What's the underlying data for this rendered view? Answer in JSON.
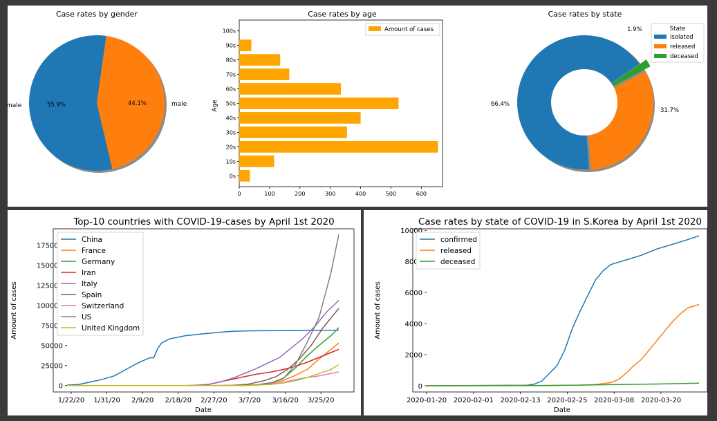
{
  "chart_data": [
    {
      "type": "pie",
      "title": "Case rates by gender",
      "labels": [
        "male",
        "male"
      ],
      "values": [
        55.9,
        44.1
      ],
      "pct_labels": [
        "55.9%",
        "44.1%"
      ],
      "colors": [
        "#1f77b4",
        "#ff7f0e"
      ]
    },
    {
      "type": "bar",
      "orientation": "horizontal",
      "title": "Case rates by age",
      "ylabel": "Age",
      "categories": [
        "0s",
        "10s",
        "20s",
        "30s",
        "40s",
        "50s",
        "60s",
        "70s",
        "80s",
        "90s",
        "100s"
      ],
      "values": [
        35,
        115,
        655,
        355,
        400,
        525,
        335,
        165,
        135,
        40,
        0
      ],
      "legend": [
        "Amount of cases"
      ],
      "xticks": [
        "0",
        "100",
        "200",
        "300",
        "400",
        "500",
        "600"
      ],
      "xlim": [
        0,
        655
      ],
      "color": "#ffa500"
    },
    {
      "type": "pie",
      "subtype": "donut",
      "title": "Case rates by state",
      "legend_title": "State",
      "labels": [
        "isolated",
        "released",
        "deceased"
      ],
      "values": [
        66.4,
        31.7,
        1.9
      ],
      "pct_labels": [
        "66.4%",
        "31.7%",
        "1.9%"
      ],
      "colors": [
        "#1f77b4",
        "#ff7f0e",
        "#2ca02c"
      ]
    },
    {
      "type": "line",
      "title": "Top-10  countries with COVID-19-cases by April 1st 2020",
      "xlabel": "Date",
      "ylabel": "Amount of cases",
      "xticks": [
        "1/22/20",
        "1/31/20",
        "2/9/20",
        "2/18/20",
        "2/27/20",
        "3/7/20",
        "3/16/20",
        "3/25/20"
      ],
      "yticks": [
        "0",
        "25000",
        "50000",
        "75000",
        "100000",
        "125000",
        "150000",
        "175000"
      ],
      "ylim": [
        -8000,
        195000
      ],
      "days": 70,
      "series": [
        {
          "name": "China",
          "color": "#1f77b4",
          "points": [
            [
              0,
              548
            ],
            [
              3,
              1400
            ],
            [
              6,
              4500
            ],
            [
              9,
              7700
            ],
            [
              12,
              12000
            ],
            [
              15,
              20000
            ],
            [
              18,
              28000
            ],
            [
              21,
              34500
            ],
            [
              22,
              34500
            ],
            [
              23,
              46000
            ],
            [
              24,
              53000
            ],
            [
              26,
              58000
            ],
            [
              30,
              62000
            ],
            [
              34,
              64000
            ],
            [
              38,
              66000
            ],
            [
              42,
              67500
            ],
            [
              46,
              68000
            ],
            [
              50,
              68200
            ],
            [
              55,
              68300
            ],
            [
              60,
              68500
            ],
            [
              65,
              68700
            ],
            [
              69,
              68800
            ]
          ]
        },
        {
          "name": "France",
          "color": "#ff7f0e",
          "points": [
            [
              0,
              0
            ],
            [
              40,
              100
            ],
            [
              44,
              300
            ],
            [
              48,
              1000
            ],
            [
              52,
              3000
            ],
            [
              55,
              6600
            ],
            [
              58,
              12600
            ],
            [
              61,
              20000
            ],
            [
              64,
              33000
            ],
            [
              67,
              45000
            ],
            [
              69,
              53000
            ]
          ]
        },
        {
          "name": "Germany",
          "color": "#2ca02c",
          "points": [
            [
              0,
              0
            ],
            [
              40,
              0
            ],
            [
              44,
              100
            ],
            [
              48,
              800
            ],
            [
              52,
              3700
            ],
            [
              55,
              9400
            ],
            [
              58,
              22000
            ],
            [
              61,
              37000
            ],
            [
              64,
              50000
            ],
            [
              67,
              62000
            ],
            [
              69,
              72000
            ]
          ]
        },
        {
          "name": "Iran",
          "color": "#d62728",
          "points": [
            [
              0,
              0
            ],
            [
              28,
              0
            ],
            [
              32,
              100
            ],
            [
              36,
              1500
            ],
            [
              40,
              5800
            ],
            [
              44,
              10000
            ],
            [
              48,
              14000
            ],
            [
              52,
              17000
            ],
            [
              55,
              20000
            ],
            [
              58,
              24000
            ],
            [
              61,
              29000
            ],
            [
              64,
              35000
            ],
            [
              67,
              41000
            ],
            [
              69,
              45000
            ]
          ]
        },
        {
          "name": "Italy",
          "color": "#9467bd",
          "points": [
            [
              0,
              0
            ],
            [
              30,
              0
            ],
            [
              33,
              400
            ],
            [
              36,
              1500
            ],
            [
              39,
              4600
            ],
            [
              42,
              9000
            ],
            [
              45,
              15000
            ],
            [
              48,
              21000
            ],
            [
              51,
              28000
            ],
            [
              54,
              35000
            ],
            [
              57,
              47000
            ],
            [
              60,
              59000
            ],
            [
              63,
              74000
            ],
            [
              66,
              92000
            ],
            [
              69,
              106000
            ]
          ]
        },
        {
          "name": "Spain",
          "color": "#8c564b",
          "points": [
            [
              0,
              0
            ],
            [
              38,
              0
            ],
            [
              42,
              300
            ],
            [
              46,
              1700
            ],
            [
              50,
              6000
            ],
            [
              53,
              11000
            ],
            [
              56,
              20000
            ],
            [
              59,
              33000
            ],
            [
              62,
              50000
            ],
            [
              65,
              72000
            ],
            [
              69,
              96000
            ]
          ]
        },
        {
          "name": "Switzerland",
          "color": "#e377c2",
          "points": [
            [
              0,
              0
            ],
            [
              40,
              0
            ],
            [
              44,
              100
            ],
            [
              48,
              500
            ],
            [
              52,
              2000
            ],
            [
              55,
              4000
            ],
            [
              58,
              7500
            ],
            [
              61,
              10000
            ],
            [
              64,
              12000
            ],
            [
              67,
              15000
            ],
            [
              69,
              17000
            ]
          ]
        },
        {
          "name": "US",
          "color": "#7f7f7f",
          "points": [
            [
              0,
              0
            ],
            [
              40,
              0
            ],
            [
              44,
              200
            ],
            [
              48,
              700
            ],
            [
              52,
              3500
            ],
            [
              55,
              9000
            ],
            [
              58,
              26000
            ],
            [
              61,
              54000
            ],
            [
              64,
              85000
            ],
            [
              67,
              140000
            ],
            [
              69,
              188000
            ]
          ]
        },
        {
          "name": "United Kingdom",
          "color": "#bcbd22",
          "points": [
            [
              0,
              0
            ],
            [
              40,
              0
            ],
            [
              44,
              100
            ],
            [
              48,
              500
            ],
            [
              52,
              1500
            ],
            [
              55,
              3300
            ],
            [
              58,
              6000
            ],
            [
              61,
              10000
            ],
            [
              64,
              15000
            ],
            [
              67,
              20000
            ],
            [
              69,
              26000
            ]
          ]
        }
      ]
    },
    {
      "type": "line",
      "title": "Case rates by state of COVID-19 in S.Korea by April 1st 2020",
      "xlabel": "Date",
      "ylabel": "Amount of cases",
      "xticks": [
        "2020-01-20",
        "2020-02-01",
        "2020-02-13",
        "2020-02-25",
        "2020-03-08",
        "2020-03-20"
      ],
      "yticks": [
        "0",
        "2000",
        "4000",
        "6000",
        "8000",
        "10000"
      ],
      "ylim": [
        -400,
        10100
      ],
      "days": 72,
      "series": [
        {
          "name": "confirmed",
          "color": "#1f77b4",
          "points": [
            [
              0,
              1
            ],
            [
              10,
              15
            ],
            [
              20,
              28
            ],
            [
              26,
              30
            ],
            [
              28,
              100
            ],
            [
              30,
              300
            ],
            [
              32,
              800
            ],
            [
              34,
              1300
            ],
            [
              36,
              2300
            ],
            [
              38,
              3700
            ],
            [
              40,
              4800
            ],
            [
              42,
              5800
            ],
            [
              44,
              6800
            ],
            [
              46,
              7400
            ],
            [
              48,
              7800
            ],
            [
              52,
              8100
            ],
            [
              56,
              8400
            ],
            [
              60,
              8800
            ],
            [
              64,
              9100
            ],
            [
              68,
              9400
            ],
            [
              71,
              9650
            ]
          ]
        },
        {
          "name": "released",
          "color": "#ff7f0e",
          "points": [
            [
              0,
              0
            ],
            [
              30,
              20
            ],
            [
              40,
              40
            ],
            [
              44,
              80
            ],
            [
              48,
              200
            ],
            [
              50,
              400
            ],
            [
              52,
              800
            ],
            [
              54,
              1300
            ],
            [
              56,
              1700
            ],
            [
              58,
              2300
            ],
            [
              60,
              2900
            ],
            [
              62,
              3500
            ],
            [
              64,
              4100
            ],
            [
              66,
              4600
            ],
            [
              68,
              5000
            ],
            [
              71,
              5230
            ]
          ]
        },
        {
          "name": "deceased",
          "color": "#2ca02c",
          "points": [
            [
              0,
              0
            ],
            [
              30,
              10
            ],
            [
              40,
              40
            ],
            [
              50,
              80
            ],
            [
              60,
              110
            ],
            [
              66,
              140
            ],
            [
              71,
              170
            ]
          ]
        }
      ]
    }
  ]
}
